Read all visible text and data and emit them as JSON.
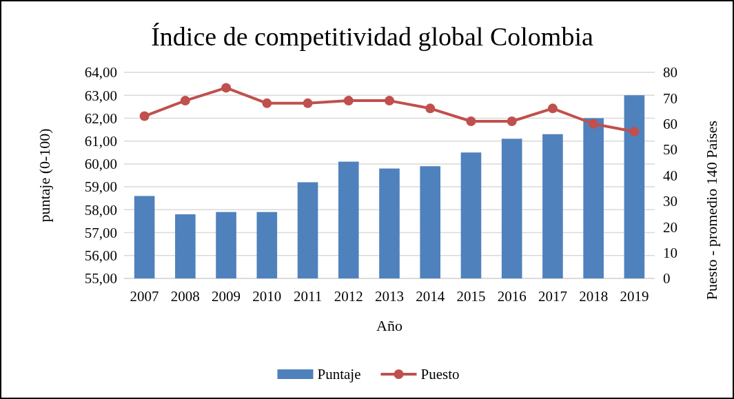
{
  "chart_data": {
    "type": "bar",
    "title": "Índice de competitividad global Colombia",
    "xlabel": "Año",
    "ylabel": "puntaje (0-100)",
    "y2label": "Puesto - promedio 140 Países",
    "categories": [
      "2007",
      "2008",
      "2009",
      "2010",
      "2011",
      "2012",
      "2013",
      "2014",
      "2015",
      "2016",
      "2017",
      "2018",
      "2019"
    ],
    "series": [
      {
        "name": "Puntaje",
        "color": "#4f81bd",
        "values": [
          58.6,
          57.8,
          57.9,
          57.9,
          59.2,
          60.1,
          59.8,
          59.9,
          60.5,
          61.1,
          61.3,
          62.0,
          63.0
        ]
      },
      {
        "name": "Puesto",
        "type": "line",
        "axis": "y2",
        "color": "#c0504d",
        "marker": "circle",
        "values": [
          63,
          69,
          74,
          68,
          68,
          69,
          69,
          66,
          61,
          61,
          66,
          60,
          57
        ]
      }
    ],
    "ylim": [
      55,
      64
    ],
    "yticks": [
      {
        "value": 55,
        "label": "55,00"
      },
      {
        "value": 56,
        "label": "56,00"
      },
      {
        "value": 57,
        "label": "57,00"
      },
      {
        "value": 58,
        "label": "58,00"
      },
      {
        "value": 59,
        "label": "59,00"
      },
      {
        "value": 60,
        "label": "60,00"
      },
      {
        "value": 61,
        "label": "61,00"
      },
      {
        "value": 62,
        "label": "62,00"
      },
      {
        "value": 63,
        "label": "63,00"
      },
      {
        "value": 64,
        "label": "64,00"
      }
    ],
    "y2lim": [
      0,
      80
    ],
    "y2ticks": [
      0,
      10,
      20,
      30,
      40,
      50,
      60,
      70,
      80
    ],
    "grid": "y",
    "legend": "bottom"
  }
}
